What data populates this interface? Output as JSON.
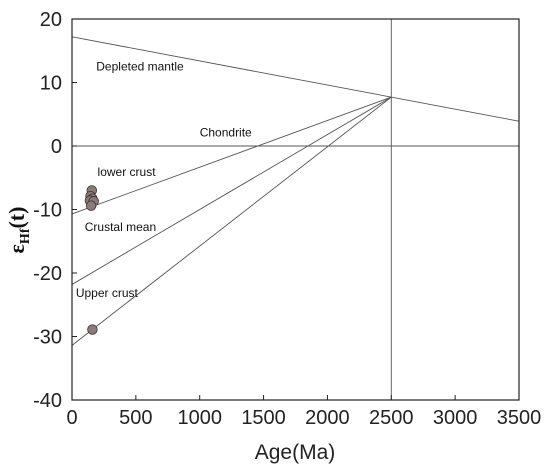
{
  "chart_data": {
    "type": "scatter",
    "xlabel": "Age(Ma)",
    "ylabel": {
      "main": "ε",
      "sub": "Hf",
      "tail": "(t)"
    },
    "xlim": [
      0,
      3500
    ],
    "ylim": [
      -40,
      20
    ],
    "xticks": [
      0,
      500,
      1000,
      1500,
      2000,
      2500,
      3000,
      3500
    ],
    "yticks": [
      20,
      10,
      0,
      -10,
      -20,
      -30,
      -40
    ],
    "grid": false,
    "reference_lines": [
      {
        "name": "Depleted mantle",
        "x": [
          0,
          3500
        ],
        "y": [
          17.2,
          3.9
        ]
      },
      {
        "name": "Chondrite",
        "x": [
          0,
          3500
        ],
        "y": [
          0,
          0
        ]
      },
      {
        "name": "lower crust",
        "x": [
          0,
          2500
        ],
        "y": [
          -10.7,
          7.7
        ]
      },
      {
        "name": "Crustal mean",
        "x": [
          0,
          2500
        ],
        "y": [
          -21.8,
          7.7
        ]
      },
      {
        "name": "Upper crust",
        "x": [
          0,
          2500
        ],
        "y": [
          -31.4,
          7.7
        ]
      },
      {
        "name": "",
        "x": [
          2500,
          2500
        ],
        "y": [
          -40,
          20
        ]
      }
    ],
    "annotations": [
      {
        "text": "Depleted mantle",
        "x": 190,
        "y": 11.9
      },
      {
        "text": "Chondrite",
        "x": 1000,
        "y": 1.5
      },
      {
        "text": "lower crust",
        "x": 200,
        "y": -4.7
      },
      {
        "text": "Crustal mean",
        "x": 100,
        "y": -13.4
      },
      {
        "text": "Upper crust",
        "x": 30,
        "y": -23.8
      }
    ],
    "points": [
      {
        "x": 155,
        "y": -7.0
      },
      {
        "x": 145,
        "y": -7.9
      },
      {
        "x": 160,
        "y": -8.3
      },
      {
        "x": 140,
        "y": -8.6
      },
      {
        "x": 170,
        "y": -8.7
      },
      {
        "x": 150,
        "y": -9.4
      },
      {
        "x": 160,
        "y": -28.9
      }
    ],
    "point_color": "#8c7b78"
  }
}
